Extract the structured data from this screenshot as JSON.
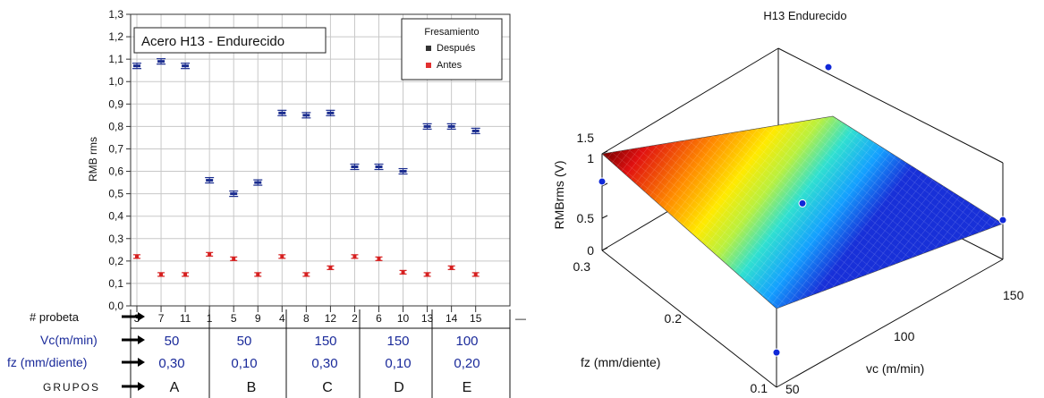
{
  "chart_data": [
    {
      "type": "scatter",
      "title": "Acero H13 - Endurecido",
      "ylabel": "RMB rms",
      "ylim": [
        0,
        1.3
      ],
      "yticks": [
        "0,0",
        "0,1",
        "0,2",
        "0,3",
        "0,4",
        "0,5",
        "0,6",
        "0,7",
        "0,8",
        "0,9",
        "1,0",
        "1,1",
        "1,2",
        "1,3"
      ],
      "grid": true,
      "legend": {
        "title": "Fresamiento",
        "position": "top-right",
        "entries": [
          {
            "label": "Después",
            "color": "#1b2d8f"
          },
          {
            "label": "Antes",
            "color": "#d62020"
          }
        ]
      },
      "categories": [
        "3",
        "7",
        "11",
        "1",
        "5",
        "9",
        "4",
        "8",
        "12",
        "2",
        "6",
        "10",
        "13",
        "14",
        "15"
      ],
      "series": [
        {
          "name": "Después",
          "color": "#1b2d8f",
          "values": [
            1.07,
            1.09,
            1.07,
            0.56,
            0.5,
            0.55,
            0.86,
            0.85,
            0.86,
            0.62,
            0.62,
            0.6,
            0.8,
            0.8,
            0.78
          ]
        },
        {
          "name": "Antes",
          "color": "#d62020",
          "values": [
            0.22,
            0.14,
            0.14,
            0.23,
            0.21,
            0.14,
            0.22,
            0.14,
            0.17,
            0.22,
            0.21,
            0.15,
            0.14,
            0.17,
            0.14
          ]
        }
      ],
      "table": {
        "row_labels": [
          "# probeta",
          "Vc(m/min)",
          "fz (mm/diente)",
          "GRUPOS"
        ],
        "trailing_tick": "—",
        "groups": [
          {
            "vc": "50",
            "fz": "0,30",
            "name": "A"
          },
          {
            "vc": "50",
            "fz": "0,10",
            "name": "B"
          },
          {
            "vc": "150",
            "fz": "0,30",
            "name": "C"
          },
          {
            "vc": "150",
            "fz": "0,10",
            "name": "D"
          },
          {
            "vc": "100",
            "fz": "0,20",
            "name": "E"
          }
        ]
      }
    },
    {
      "type": "surface3d",
      "title": "H13 Endurecido",
      "xlabel": "vc (m/min)",
      "ylabel": "fz (mm/diente)",
      "zlabel": "RMBrms (V)",
      "xlim": [
        50,
        150
      ],
      "ylim": [
        0.1,
        0.3
      ],
      "zlim": [
        0,
        1.5
      ],
      "xticks": [
        "50",
        "100",
        "150"
      ],
      "yticks": [
        "0.1",
        "0.2",
        "0.3"
      ],
      "zticks": [
        "0",
        "0.5",
        "1",
        "1.5"
      ],
      "colormap": "jet",
      "points": [
        {
          "vc": 50,
          "fz": 0.3,
          "rmb": 1.07
        },
        {
          "vc": 150,
          "fz": 0.3,
          "rmb": 0.86
        },
        {
          "vc": 100,
          "fz": 0.2,
          "rmb": 0.8
        },
        {
          "vc": 50,
          "fz": 0.1,
          "rmb": 0.54
        },
        {
          "vc": 150,
          "fz": 0.1,
          "rmb": 0.61
        }
      ]
    }
  ]
}
